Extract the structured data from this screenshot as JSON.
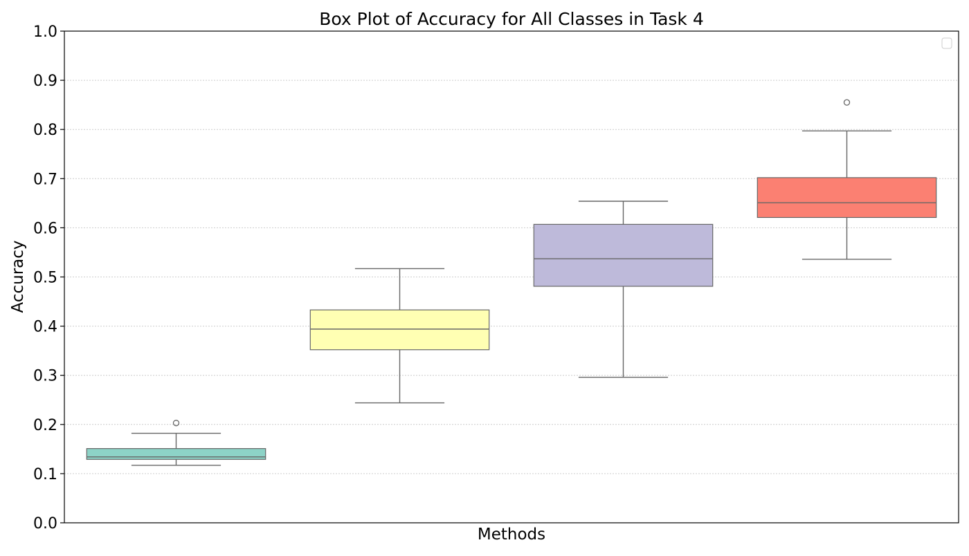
{
  "chart_data": {
    "type": "box",
    "title": "Box Plot of Accuracy for All Classes in Task 4",
    "xlabel": "Methods",
    "ylabel": "Accuracy",
    "ylim": [
      0.0,
      1.0
    ],
    "yticks": [
      0.0,
      0.1,
      0.2,
      0.3,
      0.4,
      0.5,
      0.6,
      0.7,
      0.8,
      0.9,
      1.0
    ],
    "ytick_labels": [
      "0.0",
      "0.1",
      "0.2",
      "0.3",
      "0.4",
      "0.5",
      "0.6",
      "0.7",
      "0.8",
      "0.9",
      "1.0"
    ],
    "grid": "horizontal dotted",
    "legend": "top-right (empty)",
    "boxes": [
      {
        "whisker_low": 0.117,
        "q1": 0.129,
        "median": 0.134,
        "q3": 0.151,
        "whisker_high": 0.182,
        "outliers": [
          0.203
        ],
        "color": "#8dd3c7"
      },
      {
        "whisker_low": 0.244,
        "q1": 0.352,
        "median": 0.394,
        "q3": 0.433,
        "whisker_high": 0.517,
        "outliers": [],
        "color": "#ffffb3"
      },
      {
        "whisker_low": 0.296,
        "q1": 0.481,
        "median": 0.537,
        "q3": 0.607,
        "whisker_high": 0.654,
        "outliers": [],
        "color": "#bebada"
      },
      {
        "whisker_low": 0.536,
        "q1": 0.621,
        "median": 0.651,
        "q3": 0.702,
        "whisker_high": 0.797,
        "outliers": [
          0.855
        ],
        "color": "#fb8072"
      }
    ]
  }
}
